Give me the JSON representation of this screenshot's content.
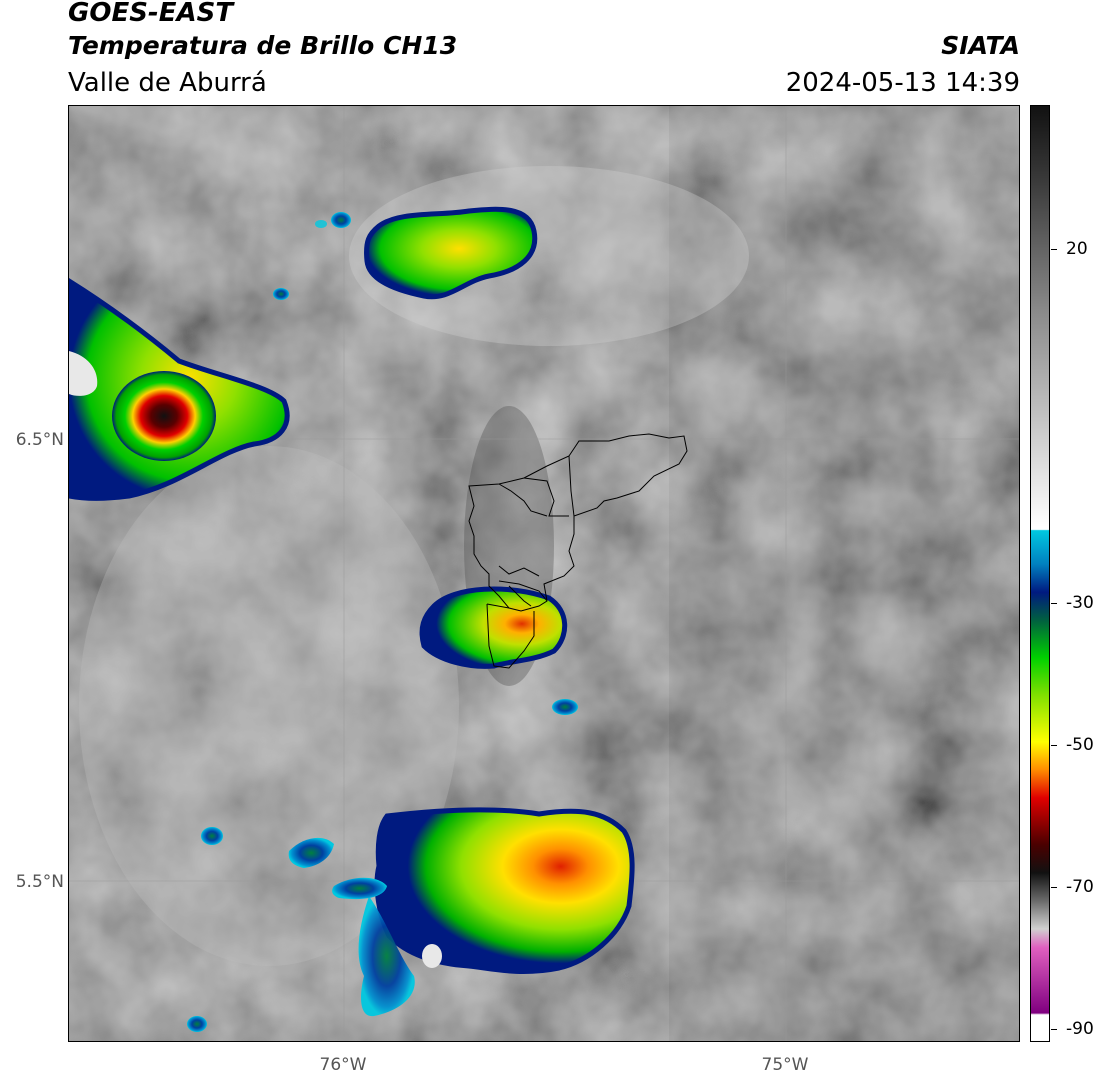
{
  "header": {
    "satellite": "GOES-EAST",
    "product": "Temperatura de Brillo CH13",
    "organization": "SIATA",
    "region": "Valle de Aburrá",
    "datetime": "2024-05-13 14:39"
  },
  "map": {
    "lat_labels": [
      "6.5°N",
      "5.5°N"
    ],
    "lon_labels": [
      "76°W",
      "75°W"
    ],
    "extent": {
      "lon": [
        -76.62,
        -74.47
      ],
      "lat": [
        5.12,
        7.21
      ]
    }
  },
  "colorbar": {
    "ticks": [
      "20",
      "-30",
      "-50",
      "-70",
      "-90"
    ],
    "range": [
      35,
      -92
    ],
    "colors": {
      "warm_top": "#111111",
      "gray_mid": "#8a8a8a",
      "white": "#ffffff",
      "cyan": "#00c8e0",
      "navy": "#001a80",
      "green": "#00d000",
      "yellow": "#ffff00",
      "orange": "#ff8c00",
      "red": "#e00000",
      "darkred": "#4a0000",
      "pink": "#e060c0",
      "purple": "#800080"
    }
  }
}
